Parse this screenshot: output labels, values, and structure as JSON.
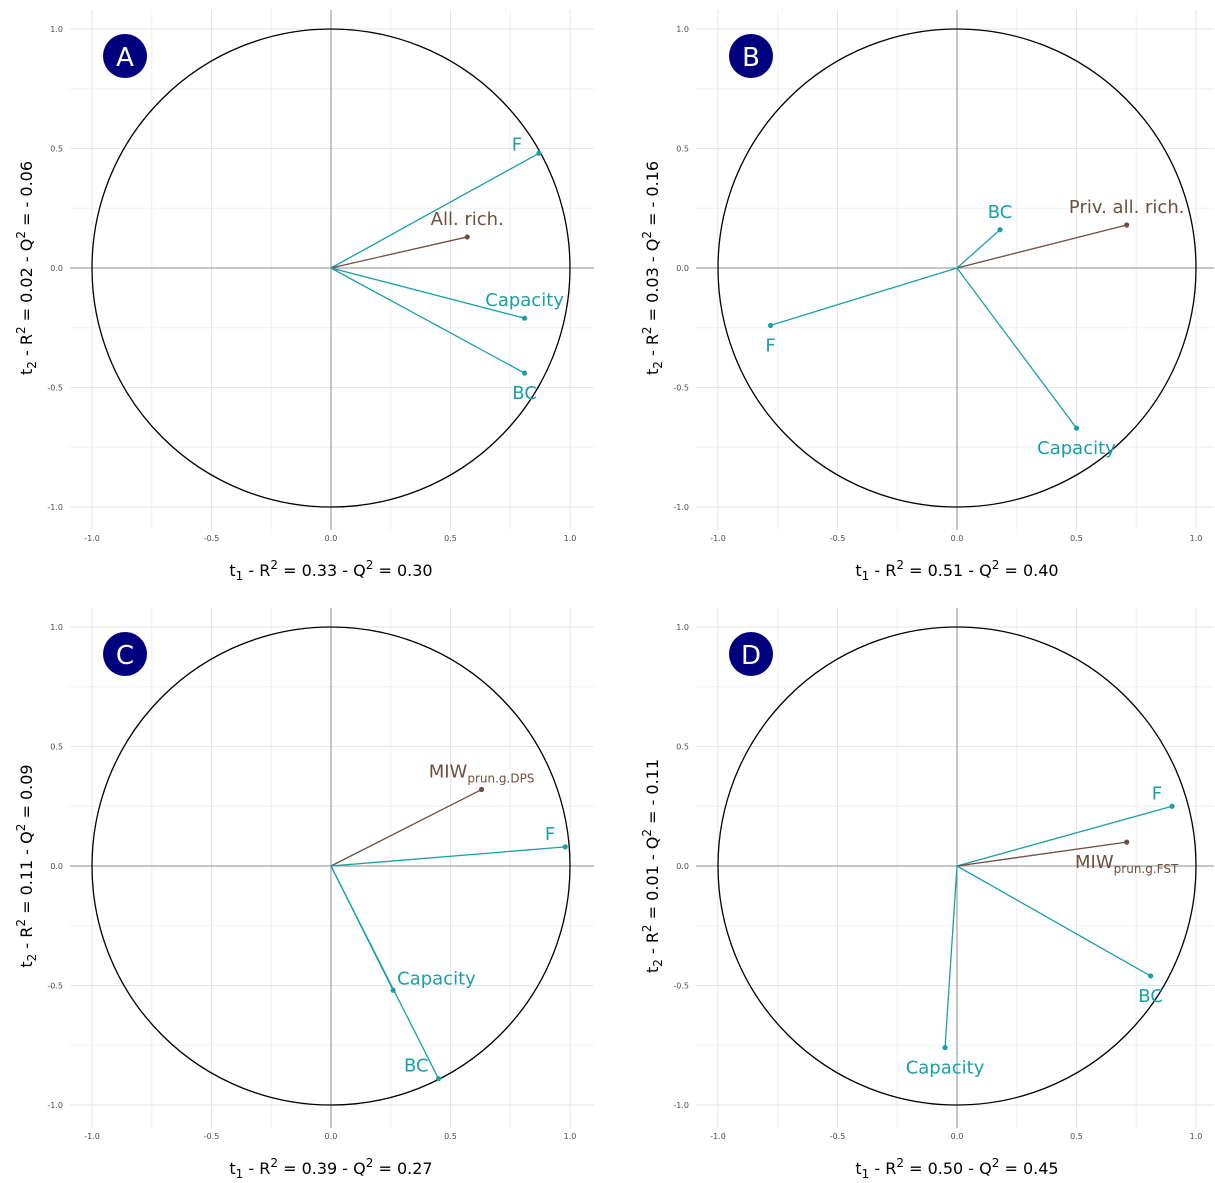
{
  "colors": {
    "predictor": "#1a9fa8",
    "response": "#6e4f40",
    "badge": "#00007f"
  },
  "chart_data": [
    {
      "type": "scatter",
      "panel": "A",
      "xlabel": {
        "base": "t",
        "sub": "1",
        "r2_text": " - R",
        "sup": "2",
        "eq": " = 0.33 - Q",
        "sup2": "2",
        "eq2": " = 0.30"
      },
      "ylabel": {
        "base": "t",
        "sub": "2",
        "r2_text": " - R",
        "sup": "2",
        "eq": " = 0.02 - Q",
        "sup2": "2",
        "eq2": " = - 0.06"
      },
      "xlim": [
        -1,
        1
      ],
      "ylim": [
        -1,
        1
      ],
      "xticks": [
        "-1.0",
        "-0.5",
        "0.0",
        "0.5",
        "1.0"
      ],
      "yticks": [
        "-1.0",
        "-0.5",
        "0.0",
        "0.5",
        "1.0"
      ],
      "points": [
        {
          "label": "F",
          "sub": "",
          "x": 0.87,
          "y": 0.48,
          "kind": "predictor",
          "pos": "left"
        },
        {
          "label": "All. rich.",
          "sub": "",
          "x": 0.57,
          "y": 0.13,
          "kind": "response",
          "pos": "above"
        },
        {
          "label": "Capacity",
          "sub": "",
          "x": 0.81,
          "y": -0.21,
          "kind": "predictor",
          "pos": "above"
        },
        {
          "label": "BC",
          "sub": "",
          "x": 0.81,
          "y": -0.44,
          "kind": "predictor",
          "pos": "below"
        }
      ]
    },
    {
      "type": "scatter",
      "panel": "B",
      "xlabel": {
        "base": "t",
        "sub": "1",
        "r2_text": " - R",
        "sup": "2",
        "eq": " = 0.51 - Q",
        "sup2": "2",
        "eq2": " = 0.40"
      },
      "ylabel": {
        "base": "t",
        "sub": "2",
        "r2_text": " - R",
        "sup": "2",
        "eq": " = 0.03 - Q",
        "sup2": "2",
        "eq2": " = - 0.16"
      },
      "xlim": [
        -1,
        1
      ],
      "ylim": [
        -1,
        1
      ],
      "xticks": [
        "-1.0",
        "-0.5",
        "0.0",
        "0.5",
        "1.0"
      ],
      "yticks": [
        "-1.0",
        "-0.5",
        "0.0",
        "0.5",
        "1.0"
      ],
      "points": [
        {
          "label": "Priv. all. rich.",
          "sub": "",
          "x": 0.71,
          "y": 0.18,
          "kind": "response",
          "pos": "above"
        },
        {
          "label": "BC",
          "sub": "",
          "x": 0.18,
          "y": 0.16,
          "kind": "predictor",
          "pos": "above"
        },
        {
          "label": "F",
          "sub": "",
          "x": -0.78,
          "y": -0.24,
          "kind": "predictor",
          "pos": "below"
        },
        {
          "label": "Capacity",
          "sub": "",
          "x": 0.5,
          "y": -0.67,
          "kind": "predictor",
          "pos": "below"
        }
      ]
    },
    {
      "type": "scatter",
      "panel": "C",
      "xlabel": {
        "base": "t",
        "sub": "1",
        "r2_text": " - R",
        "sup": "2",
        "eq": " = 0.39 - Q",
        "sup2": "2",
        "eq2": " = 0.27"
      },
      "ylabel": {
        "base": "t",
        "sub": "2",
        "r2_text": " - R",
        "sup": "2",
        "eq": " = 0.11 - Q",
        "sup2": "2",
        "eq2": " = 0.09"
      },
      "xlim": [
        -1,
        1
      ],
      "ylim": [
        -1,
        1
      ],
      "xticks": [
        "-1.0",
        "-0.5",
        "0.0",
        "0.5",
        "1.0"
      ],
      "yticks": [
        "-1.0",
        "-0.5",
        "0.0",
        "0.5",
        "1.0"
      ],
      "points": [
        {
          "label": "MIW",
          "sub": "prun.g.DPS",
          "x": 0.63,
          "y": 0.32,
          "kind": "response",
          "pos": "above"
        },
        {
          "label": "F",
          "sub": "",
          "x": 0.98,
          "y": 0.08,
          "kind": "predictor",
          "pos": "above-left"
        },
        {
          "label": "Capacity",
          "sub": "",
          "x": 0.26,
          "y": -0.52,
          "kind": "predictor",
          "pos": "above-right"
        },
        {
          "label": "BC",
          "sub": "",
          "x": 0.45,
          "y": -0.89,
          "kind": "predictor",
          "pos": "above-left"
        }
      ]
    },
    {
      "type": "scatter",
      "panel": "D",
      "xlabel": {
        "base": "t",
        "sub": "1",
        "r2_text": " - R",
        "sup": "2",
        "eq": " = 0.50 - Q",
        "sup2": "2",
        "eq2": " = 0.45"
      },
      "ylabel": {
        "base": "t",
        "sub": "2",
        "r2_text": " - R",
        "sup": "2",
        "eq": " = 0.01 - Q",
        "sup2": "2",
        "eq2": " = - 0.11"
      },
      "xlim": [
        -1,
        1
      ],
      "ylim": [
        -1,
        1
      ],
      "xticks": [
        "-1.0",
        "-0.5",
        "0.0",
        "0.5",
        "1.0"
      ],
      "yticks": [
        "-1.0",
        "-0.5",
        "0.0",
        "0.5",
        "1.0"
      ],
      "points": [
        {
          "label": "F",
          "sub": "",
          "x": 0.9,
          "y": 0.25,
          "kind": "predictor",
          "pos": "above-left"
        },
        {
          "label": "MIW",
          "sub": "prun.g.FST",
          "x": 0.71,
          "y": 0.1,
          "kind": "response",
          "pos": "below"
        },
        {
          "label": "BC",
          "sub": "",
          "x": 0.81,
          "y": -0.46,
          "kind": "predictor",
          "pos": "below"
        },
        {
          "label": "Capacity",
          "sub": "",
          "x": -0.05,
          "y": -0.76,
          "kind": "predictor",
          "pos": "below"
        }
      ]
    }
  ]
}
